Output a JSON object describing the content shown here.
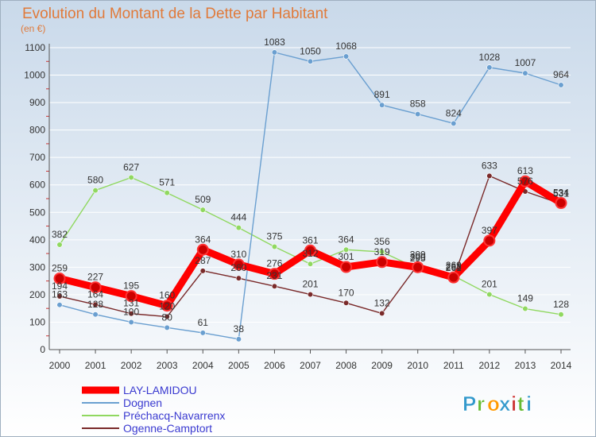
{
  "chart_data": {
    "type": "line",
    "title": "Evolution du Montant de la Dette par Habitant",
    "subtitle": "(en €)",
    "xlabel": "",
    "ylabel": "",
    "ylim": [
      0,
      1100
    ],
    "yticks": [
      0,
      100,
      200,
      300,
      400,
      500,
      600,
      700,
      800,
      900,
      1000,
      1100
    ],
    "categories": [
      "2000",
      "2001",
      "2002",
      "2003",
      "2004",
      "2005",
      "2006",
      "2007",
      "2008",
      "2009",
      "2010",
      "2011",
      "2012",
      "2013",
      "2014"
    ],
    "legend_position": "bottom-left",
    "series": [
      {
        "name": "LAY-LAMIDOU",
        "color": "#ff0000",
        "values": [
          259,
          227,
          195,
          160,
          364,
          310,
          276,
          361,
          301,
          319,
          300,
          263,
          397,
          613,
          534
        ]
      },
      {
        "name": "Dognen",
        "color": "#6a9fd0",
        "values": [
          163,
          128,
          100,
          80,
          61,
          38,
          1083,
          1050,
          1068,
          891,
          858,
          824,
          1028,
          1007,
          964
        ]
      },
      {
        "name": "Préchacq-Navarrenx",
        "color": "#90d860",
        "values": [
          382,
          580,
          627,
          571,
          509,
          444,
          375,
          312,
          364,
          356,
          295,
          269,
          201,
          149,
          128
        ]
      },
      {
        "name": "Ogenne-Camptort",
        "color": "#7a2a2a",
        "values": [
          194,
          164,
          131,
          120,
          287,
          260,
          231,
          201,
          170,
          132,
          309,
          261,
          633,
          576,
          531
        ]
      }
    ]
  },
  "brand": {
    "text": "Proxiti",
    "letters": [
      "P",
      "r",
      "o",
      "x",
      "i",
      "t",
      "i"
    ],
    "colors": [
      "#3399cc",
      "#66bb33",
      "#ff9900",
      "#3399cc",
      "#cc3333",
      "#66bb33",
      "#3399cc"
    ]
  }
}
